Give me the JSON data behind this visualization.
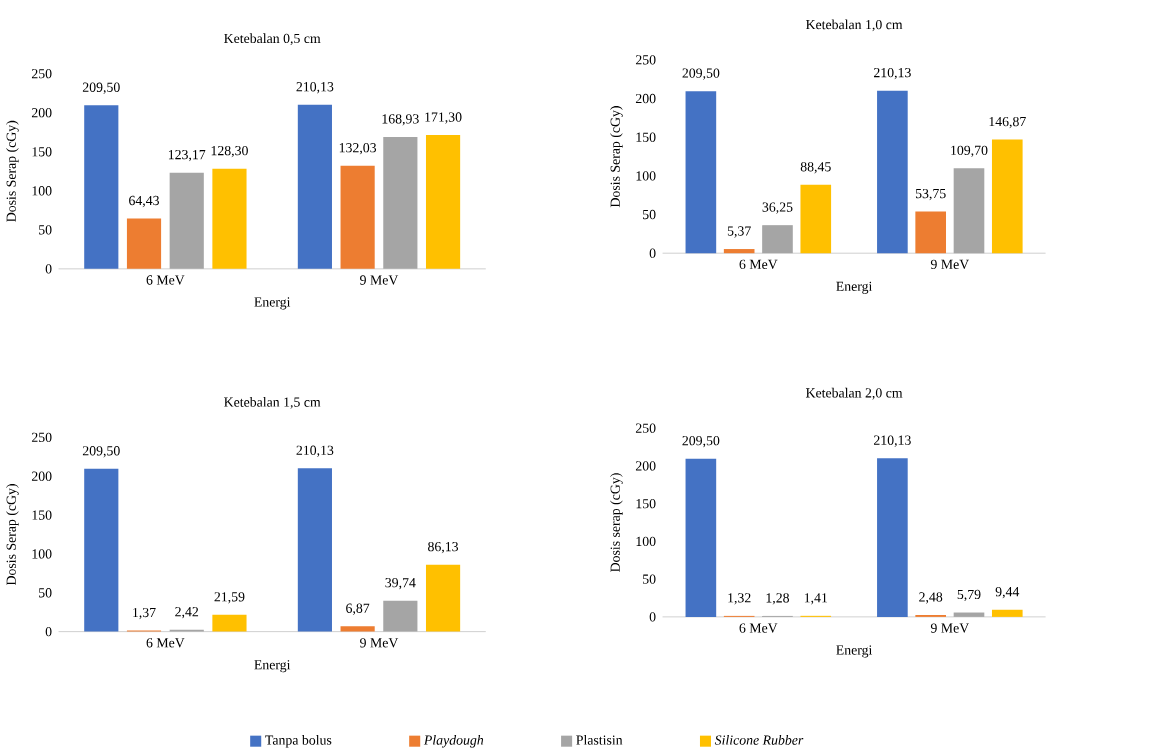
{
  "chart_data": [
    {
      "type": "bar",
      "title": "Ketebalan 0,5 cm",
      "xlabel": "Energi",
      "ylabel": "Dosis Serap (cGy)",
      "categories": [
        "6 MeV",
        "9 MeV"
      ],
      "ylim": [
        0,
        250
      ],
      "yticks": [
        0,
        50,
        100,
        150,
        200,
        250
      ],
      "series": [
        {
          "color": "#4472c4",
          "values": [
            209.5,
            210.13
          ],
          "value_labels": [
            "209,50",
            "210,13"
          ]
        },
        {
          "color": "#ed7d31",
          "values": [
            64.43,
            132.03
          ],
          "value_labels": [
            "64,43",
            "132,03"
          ]
        },
        {
          "color": "#a5a5a5",
          "values": [
            123.17,
            168.93
          ],
          "value_labels": [
            "123,17",
            "168,93"
          ]
        },
        {
          "color": "#ffc000",
          "values": [
            128.3,
            171.3
          ],
          "value_labels": [
            "128,30",
            "171,30"
          ]
        }
      ]
    },
    {
      "type": "bar",
      "title": "Ketebalan 1,0 cm",
      "xlabel": "Energi",
      "ylabel": "Dosis Serap (cGy)",
      "categories": [
        "6 MeV",
        "9 MeV"
      ],
      "ylim": [
        0,
        250
      ],
      "yticks": [
        0,
        50,
        100,
        150,
        200,
        250
      ],
      "series": [
        {
          "color": "#4472c4",
          "values": [
            209.5,
            210.13
          ],
          "value_labels": [
            "209,50",
            "210,13"
          ]
        },
        {
          "color": "#ed7d31",
          "values": [
            5.37,
            53.75
          ],
          "value_labels": [
            "5,37",
            "53,75"
          ]
        },
        {
          "color": "#a5a5a5",
          "values": [
            36.25,
            109.7
          ],
          "value_labels": [
            "36,25",
            "109,70"
          ]
        },
        {
          "color": "#ffc000",
          "values": [
            88.45,
            146.87
          ],
          "value_labels": [
            "88,45",
            "146,87"
          ]
        }
      ]
    },
    {
      "type": "bar",
      "title": "Ketebalan 1,5 cm",
      "xlabel": "Energi",
      "ylabel": "Dosis Serap (cGy)",
      "categories": [
        "6 MeV",
        "9 MeV"
      ],
      "ylim": [
        0,
        250
      ],
      "yticks": [
        0,
        50,
        100,
        150,
        200,
        250
      ],
      "series": [
        {
          "color": "#4472c4",
          "values": [
            209.5,
            210.13
          ],
          "value_labels": [
            "209,50",
            "210,13"
          ]
        },
        {
          "color": "#ed7d31",
          "values": [
            1.37,
            6.87
          ],
          "value_labels": [
            "1,37",
            "6,87"
          ]
        },
        {
          "color": "#a5a5a5",
          "values": [
            2.42,
            39.74
          ],
          "value_labels": [
            "2,42",
            "39,74"
          ]
        },
        {
          "color": "#ffc000",
          "values": [
            21.59,
            86.13
          ],
          "value_labels": [
            "21,59",
            "86,13"
          ]
        }
      ]
    },
    {
      "type": "bar",
      "title": "Ketebalan 2,0 cm",
      "xlabel": "Energi",
      "ylabel": "Dosis serap (cGy)",
      "categories": [
        "6 MeV",
        "9 MeV"
      ],
      "ylim": [
        0,
        250
      ],
      "yticks": [
        0,
        50,
        100,
        150,
        200,
        250
      ],
      "legend": "bottom",
      "series": [
        {
          "name": "Tanpa bolus",
          "color": "#4472c4",
          "values": [
            209.5,
            210.13
          ],
          "value_labels": [
            "209,50",
            "210,13"
          ]
        },
        {
          "name": "*Playdough*",
          "color": "#ed7d31",
          "values": [
            1.32,
            2.48
          ],
          "value_labels": [
            "1,32",
            "2,48"
          ]
        },
        {
          "name": "Plastisin",
          "color": "#a5a5a5",
          "values": [
            1.28,
            5.79
          ],
          "value_labels": [
            "1,28",
            "5,79"
          ]
        },
        {
          "name": "*Silicone Rubber*",
          "color": "#ffc000",
          "values": [
            1.41,
            9.44
          ],
          "value_labels": [
            "1,41",
            "9,44"
          ]
        }
      ]
    }
  ]
}
